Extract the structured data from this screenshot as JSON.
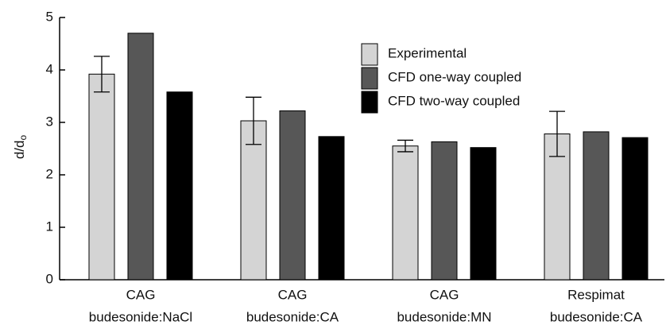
{
  "chart_data": {
    "type": "bar",
    "y_label": {
      "text": "d/d",
      "subscript": "o"
    },
    "categories": [
      [
        "CAG",
        "budesonide:NaCl"
      ],
      [
        "CAG",
        "budesonide:CA"
      ],
      [
        "CAG",
        "budesonide:MN"
      ],
      [
        "Respimat",
        "budesonide:CA"
      ]
    ],
    "series": [
      {
        "name": "Experimental",
        "color": "#d4d4d4",
        "values": [
          3.92,
          3.03,
          2.55,
          2.78
        ],
        "errors": [
          0.34,
          0.45,
          0.11,
          0.43
        ]
      },
      {
        "name": "CFD one-way coupled",
        "color": "#575757",
        "values": [
          4.7,
          3.22,
          2.63,
          2.82
        ]
      },
      {
        "name": "CFD two-way coupled",
        "color": "#000000",
        "values": [
          3.58,
          2.73,
          2.52,
          2.71
        ]
      }
    ],
    "ylim": [
      0,
      5
    ],
    "yticks": [
      0,
      1,
      2,
      3,
      4,
      5
    ],
    "legend": "top-right"
  }
}
